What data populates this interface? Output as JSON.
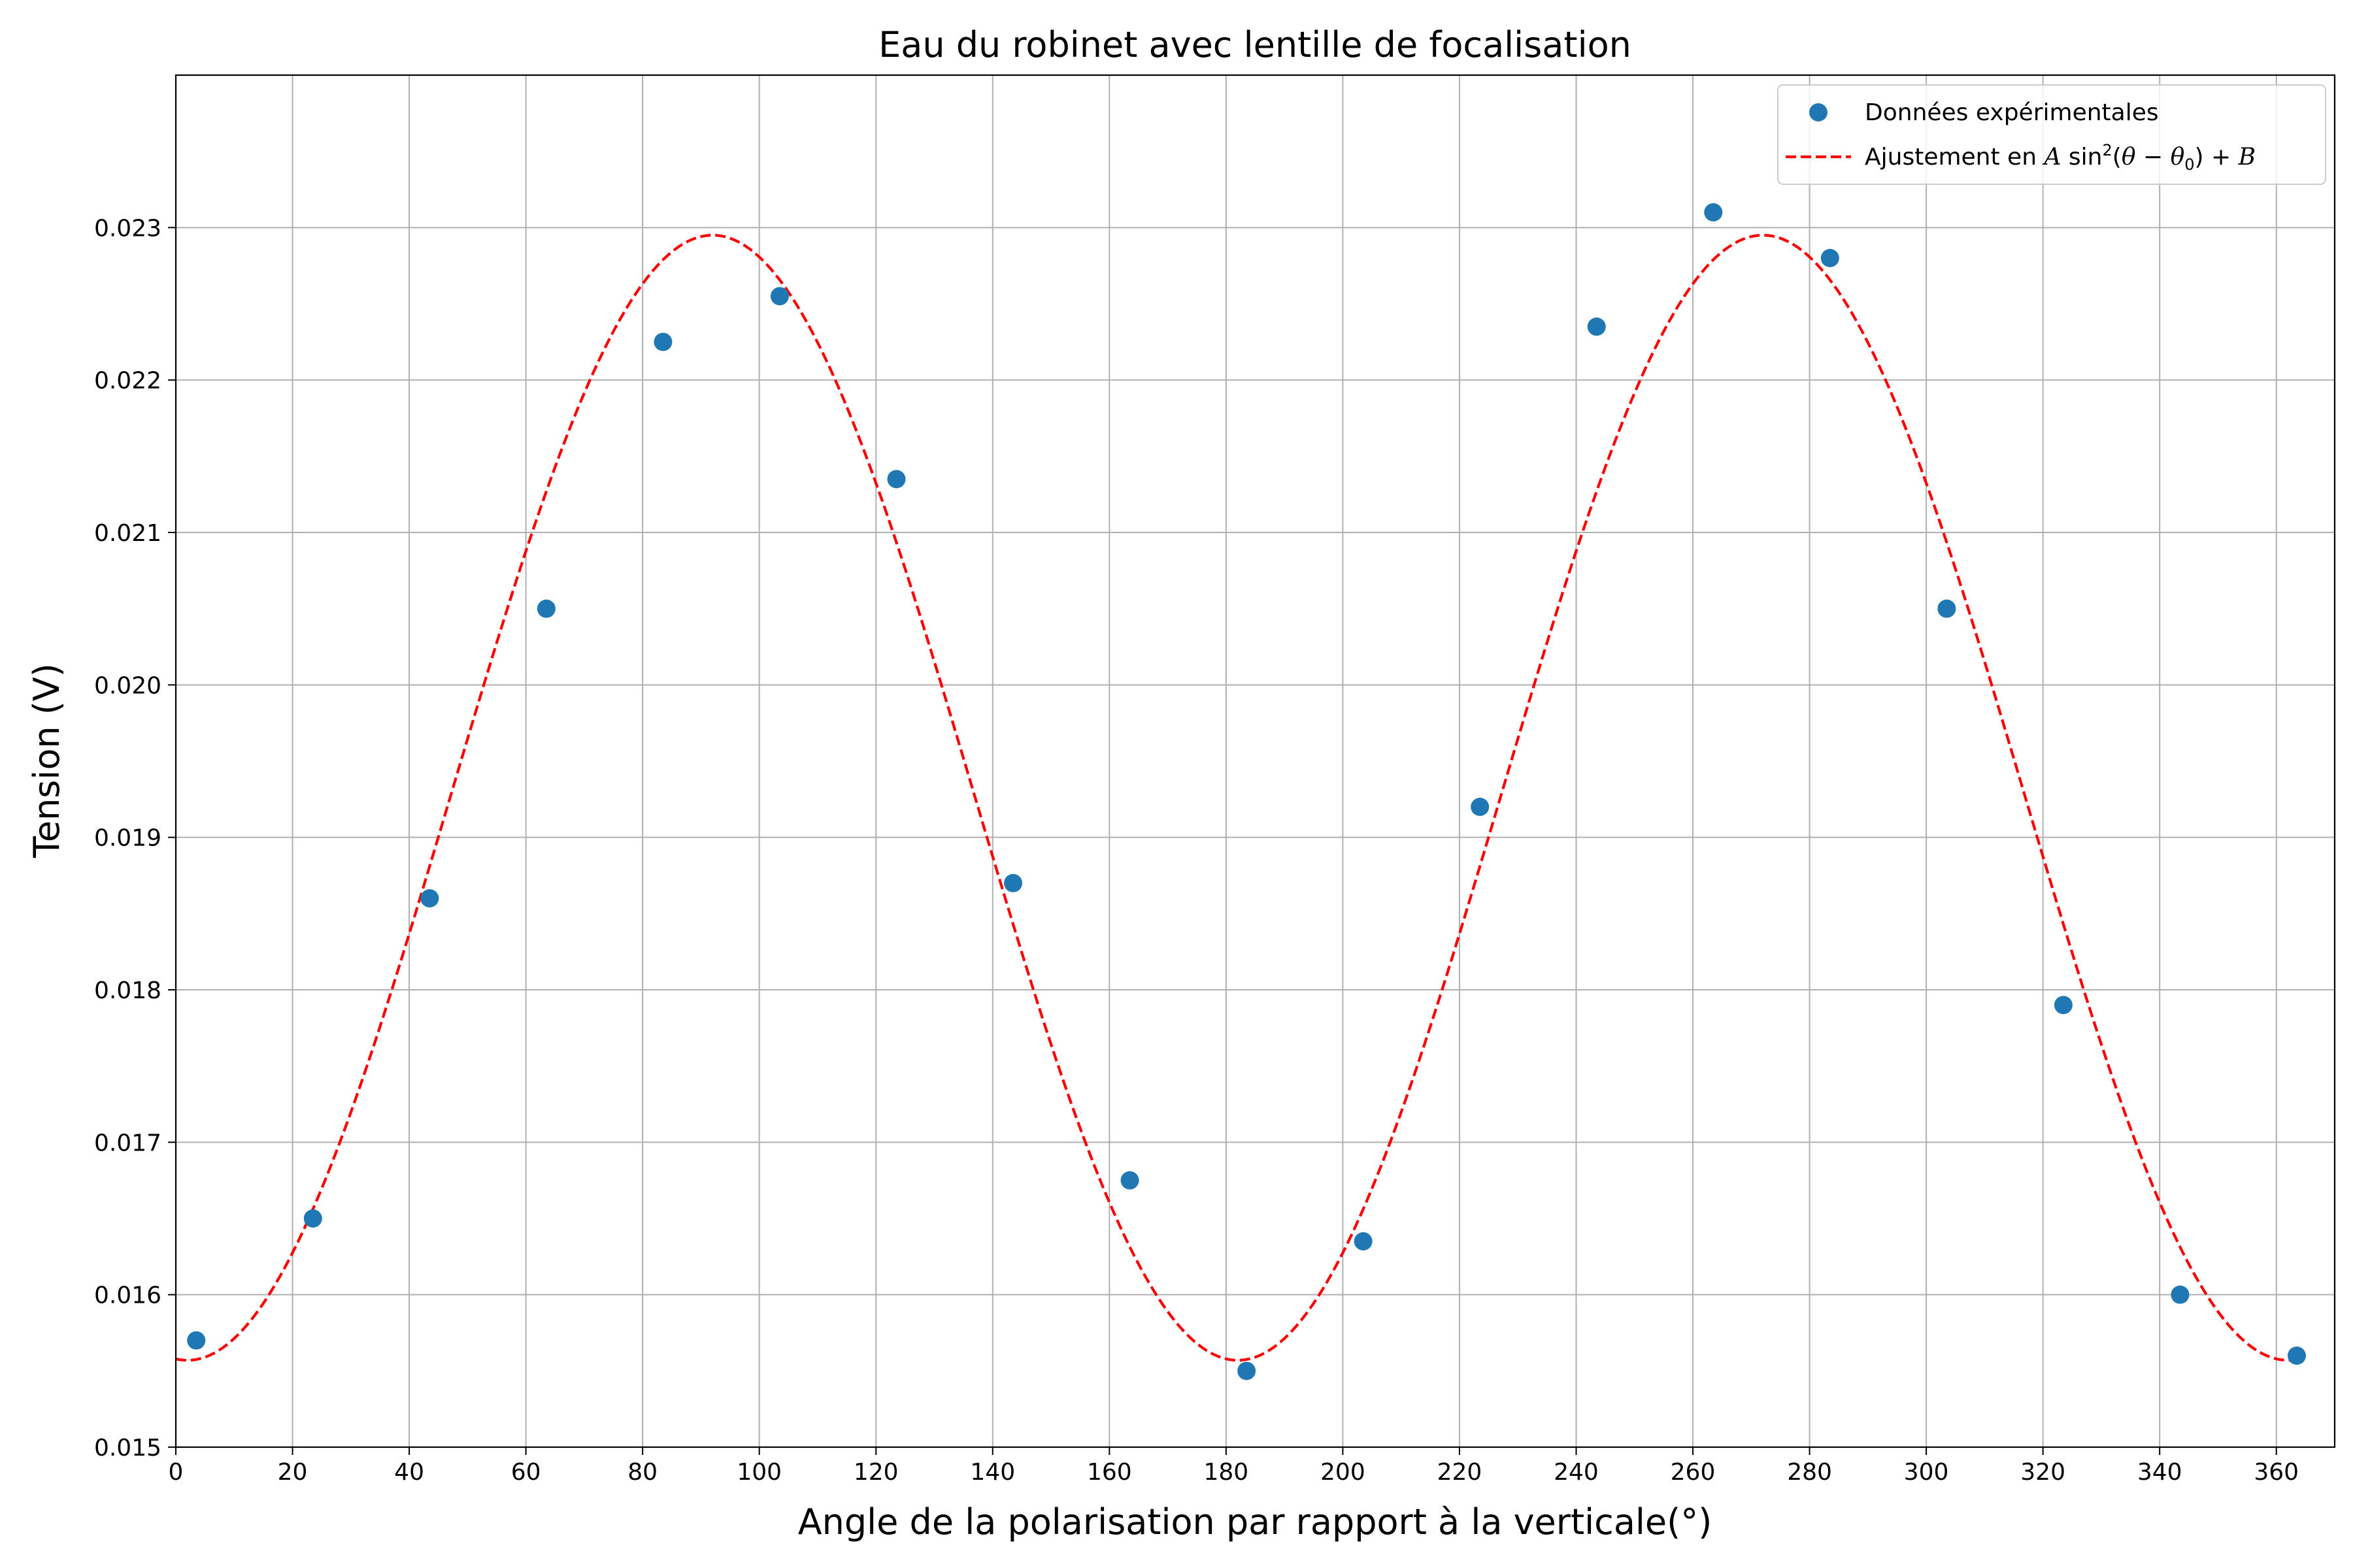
{
  "chart_data": {
    "type": "scatter",
    "title": "Eau du robinet avec lentille de focalisation",
    "xlabel": "Angle de la polarisation par rapport à la verticale(°)",
    "ylabel": "Tension (V)",
    "xlim": [
      0,
      370
    ],
    "ylim": [
      0.015,
      0.024
    ],
    "xticks": [
      0,
      20,
      40,
      60,
      80,
      100,
      120,
      140,
      160,
      180,
      200,
      220,
      240,
      260,
      280,
      300,
      320,
      340,
      360
    ],
    "xtick_labels": [
      "0",
      "20",
      "40",
      "60",
      "80",
      "100",
      "120",
      "140",
      "160",
      "180",
      "200",
      "220",
      "240",
      "260",
      "280",
      "300",
      "320",
      "340",
      "360"
    ],
    "yticks": [
      0.015,
      0.016,
      0.017,
      0.018,
      0.019,
      0.02,
      0.021,
      0.022,
      0.023
    ],
    "ytick_labels": [
      "0.015",
      "0.016",
      "0.017",
      "0.018",
      "0.019",
      "0.020",
      "0.021",
      "0.022",
      "0.023"
    ],
    "grid": true,
    "legend_position": "top-right",
    "series": [
      {
        "name": "Données expérimentales",
        "kind": "scatter",
        "color": "#1f77b4",
        "x": [
          3.5,
          23.5,
          43.5,
          63.5,
          83.5,
          103.5,
          123.5,
          143.5,
          163.5,
          183.5,
          203.5,
          223.5,
          243.5,
          263.5,
          283.5,
          303.5,
          323.5,
          343.5,
          363.5
        ],
        "y": [
          0.0157,
          0.0165,
          0.0186,
          0.0205,
          0.02225,
          0.02255,
          0.02135,
          0.0187,
          0.01675,
          0.0155,
          0.01635,
          0.0192,
          0.02235,
          0.0231,
          0.0228,
          0.0205,
          0.0179,
          0.016,
          0.0156
        ]
      },
      {
        "name": "Ajustement en A sin²(θ − θ₀) + B",
        "kind": "line",
        "style": "dashed",
        "color": "#ff0000",
        "A": 0.00738,
        "B": 0.01557,
        "theta0": 2,
        "x_range": [
          0,
          363.5
        ]
      }
    ]
  }
}
